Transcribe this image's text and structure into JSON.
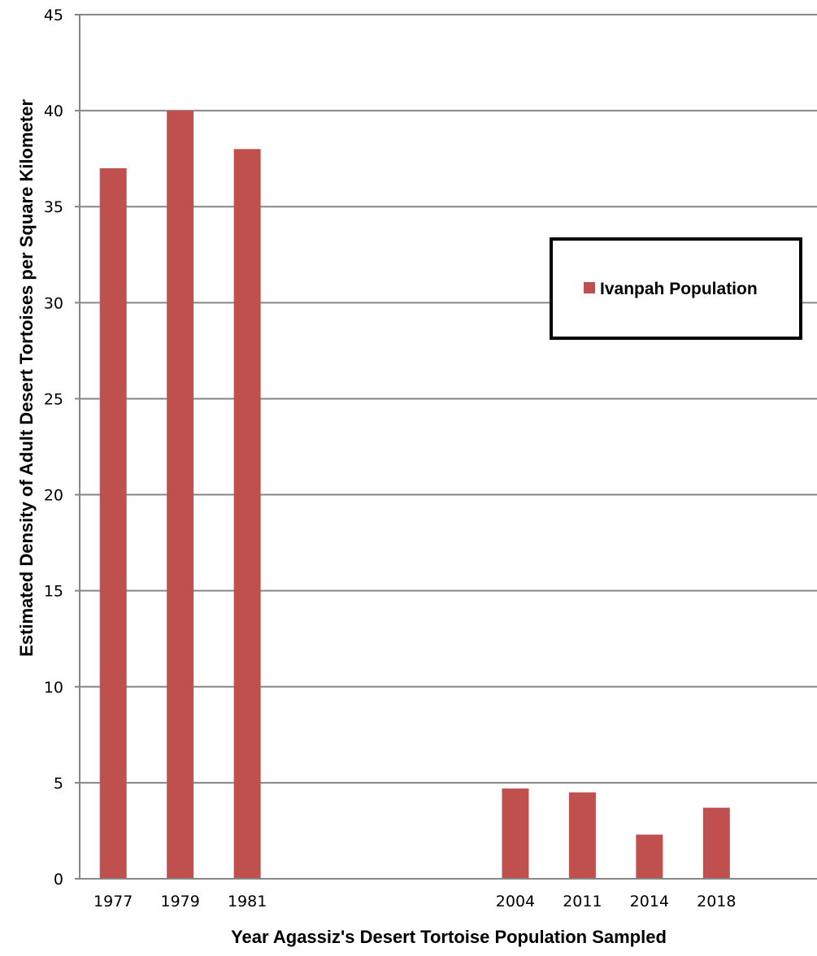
{
  "chart_data": {
    "type": "bar",
    "categories": [
      "1977",
      "1979",
      "1981",
      "",
      "",
      "",
      "2004",
      "2011",
      "2014",
      "2018",
      ""
    ],
    "series": [
      {
        "name": "Ivanpah Population",
        "values": [
          37,
          40,
          38,
          null,
          null,
          null,
          4.7,
          4.5,
          2.3,
          3.7,
          null
        ]
      }
    ],
    "xlabel": "Year Agassiz's Desert Tortoise Population Sampled",
    "ylabel": "Estimated Density of Adult Desert Tortoises per Square Kilometer",
    "ylim": [
      0,
      45
    ],
    "yticks": [
      0,
      5,
      10,
      15,
      20,
      25,
      30,
      35,
      40,
      45
    ],
    "grid": true,
    "legend_position": "right",
    "colors": {
      "bar": "#C0504D",
      "grid": "#868686",
      "axis": "#868686",
      "legend_border": "#000000"
    }
  }
}
